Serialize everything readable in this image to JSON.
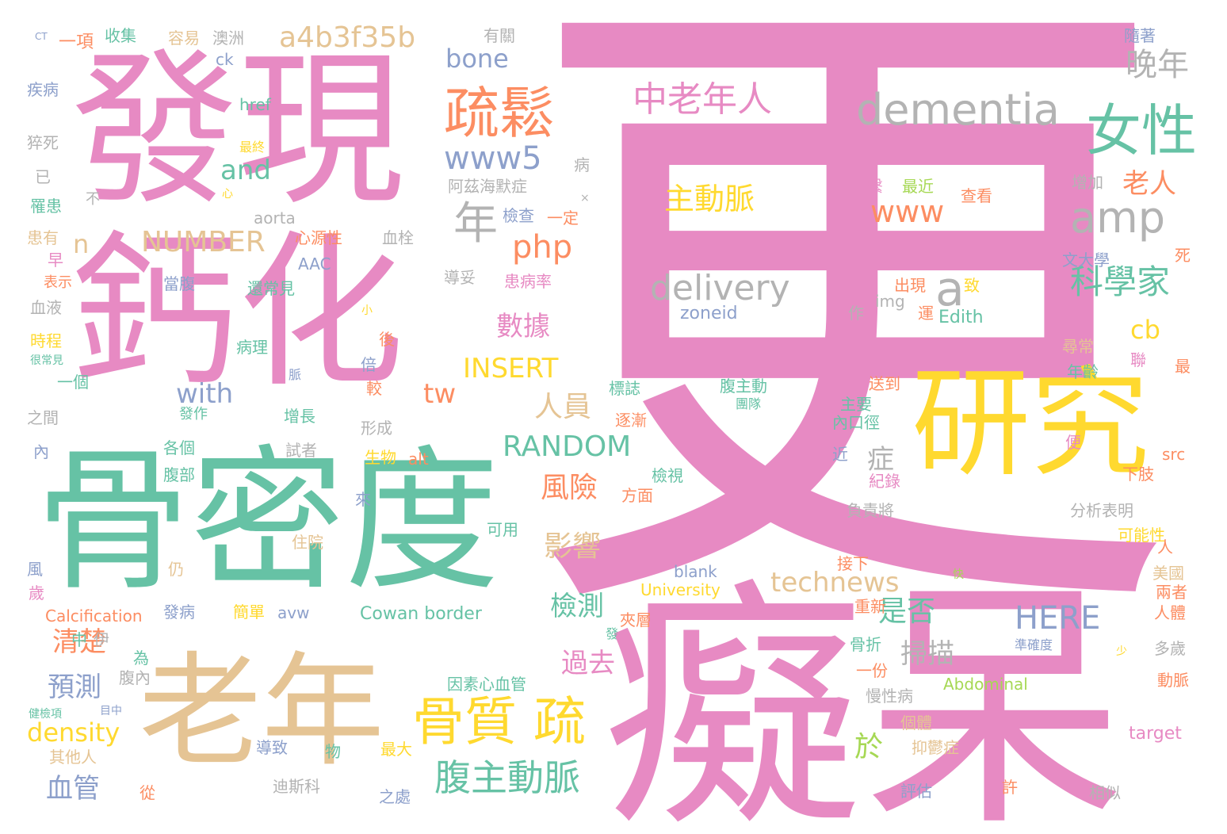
{
  "word_cloud": {
    "palette": {
      "pink": "#e78ac3",
      "green": "#66c2a5",
      "orange": "#fc8d62",
      "blue": "#8da0cb",
      "lime": "#a6d854",
      "yellow": "#ffd92f",
      "tan": "#e5c494",
      "gray": "#b3b3b3"
    },
    "words": [
      {
        "text": "更",
        "color": "pink"
      },
      {
        "text": "癡呆",
        "color": "pink"
      },
      {
        "text": "發現",
        "color": "pink"
      },
      {
        "text": "鈣化",
        "color": "pink"
      },
      {
        "text": "骨密度",
        "color": "green"
      },
      {
        "text": "老年",
        "color": "tan"
      },
      {
        "text": "研究",
        "color": "yellow"
      },
      {
        "text": "疏鬆",
        "color": "orange"
      },
      {
        "text": "女性",
        "color": "green"
      },
      {
        "text": "dementia",
        "color": "gray"
      },
      {
        "text": "amp",
        "color": "gray"
      },
      {
        "text": "骨質 疏",
        "color": "yellow"
      },
      {
        "text": "腹主動脈",
        "color": "green"
      },
      {
        "text": "中老年人",
        "color": "pink"
      },
      {
        "text": "a4b3f35b",
        "color": "tan"
      },
      {
        "text": "年",
        "color": "gray"
      },
      {
        "text": "a",
        "color": "gray"
      },
      {
        "text": "科學家",
        "color": "green"
      },
      {
        "text": "晚年",
        "color": "gray"
      },
      {
        "text": "www5",
        "color": "blue"
      },
      {
        "text": "www",
        "color": "orange"
      },
      {
        "text": "主動脈",
        "color": "yellow"
      },
      {
        "text": "delivery",
        "color": "gray"
      },
      {
        "text": "NUMBER",
        "color": "tan"
      },
      {
        "text": "php",
        "color": "orange"
      },
      {
        "text": "INSERT",
        "color": "yellow"
      },
      {
        "text": "RANDOM",
        "color": "green"
      },
      {
        "text": "technews",
        "color": "tan"
      },
      {
        "text": "HERE",
        "color": "blue"
      },
      {
        "text": "bone",
        "color": "blue"
      },
      {
        "text": "數據",
        "color": "pink"
      },
      {
        "text": "風險",
        "color": "orange"
      },
      {
        "text": "影響",
        "color": "tan"
      },
      {
        "text": "人員",
        "color": "tan"
      },
      {
        "text": "檢測",
        "color": "green"
      },
      {
        "text": "過去",
        "color": "pink"
      },
      {
        "text": "是否",
        "color": "green"
      },
      {
        "text": "掃描",
        "color": "gray"
      },
      {
        "text": "老人",
        "color": "orange"
      },
      {
        "text": "with",
        "color": "blue"
      },
      {
        "text": "and",
        "color": "green"
      },
      {
        "text": "tw",
        "color": "orange"
      },
      {
        "text": "cb",
        "color": "yellow"
      },
      {
        "text": "density",
        "color": "yellow"
      },
      {
        "text": "血管",
        "color": "blue"
      },
      {
        "text": "預測",
        "color": "blue"
      },
      {
        "text": "清楚",
        "color": "orange"
      },
      {
        "text": "於",
        "color": "lime"
      },
      {
        "text": "症",
        "color": "gray"
      },
      {
        "text": "n",
        "color": "tan"
      },
      {
        "text": "zoneid",
        "color": "blue"
      },
      {
        "text": "Edith",
        "color": "green"
      },
      {
        "text": "img",
        "color": "gray"
      },
      {
        "text": "Cowan border",
        "color": "green"
      },
      {
        "text": "Calcification",
        "color": "orange"
      },
      {
        "text": "University",
        "color": "yellow"
      },
      {
        "text": "Abdominal",
        "color": "lime"
      },
      {
        "text": "blank",
        "color": "blue"
      },
      {
        "text": "target",
        "color": "pink"
      },
      {
        "text": "src",
        "color": "orange"
      },
      {
        "text": "alt",
        "color": "orange"
      },
      {
        "text": "avw",
        "color": "blue"
      },
      {
        "text": "aorta",
        "color": "gray"
      },
      {
        "text": "AAC",
        "color": "blue"
      },
      {
        "text": "href",
        "color": "green"
      },
      {
        "text": "ck",
        "color": "blue"
      },
      {
        "text": "CT",
        "color": "blue"
      },
      {
        "text": "一項",
        "color": "orange"
      },
      {
        "text": "收集",
        "color": "green"
      },
      {
        "text": "容易",
        "color": "tan"
      },
      {
        "text": "澳洲",
        "color": "gray"
      },
      {
        "text": "有關",
        "color": "gray"
      },
      {
        "text": "隨著",
        "color": "blue"
      },
      {
        "text": "疾病",
        "color": "blue"
      },
      {
        "text": "猝死",
        "color": "gray"
      },
      {
        "text": "最終",
        "color": "yellow"
      },
      {
        "text": "已",
        "color": "gray"
      },
      {
        "text": "罹患",
        "color": "green"
      },
      {
        "text": "不",
        "color": "gray"
      },
      {
        "text": "心",
        "color": "yellow"
      },
      {
        "text": "患有",
        "color": "tan"
      },
      {
        "text": "心源性",
        "color": "orange"
      },
      {
        "text": "血栓",
        "color": "gray"
      },
      {
        "text": "早",
        "color": "pink"
      },
      {
        "text": "表示",
        "color": "orange"
      },
      {
        "text": "當腹",
        "color": "blue"
      },
      {
        "text": "還常見",
        "color": "green"
      },
      {
        "text": "血液",
        "color": "gray"
      },
      {
        "text": "時程",
        "color": "yellow"
      },
      {
        "text": "很常見",
        "color": "green"
      },
      {
        "text": "病理",
        "color": "green"
      },
      {
        "text": "一個",
        "color": "green"
      },
      {
        "text": "增長",
        "color": "green"
      },
      {
        "text": "之間",
        "color": "gray"
      },
      {
        "text": "發作",
        "color": "green"
      },
      {
        "text": "形成",
        "color": "gray"
      },
      {
        "text": "內",
        "color": "blue"
      },
      {
        "text": "各個",
        "color": "green"
      },
      {
        "text": "試者",
        "color": "gray"
      },
      {
        "text": "腹部",
        "color": "green"
      },
      {
        "text": "生物",
        "color": "yellow"
      },
      {
        "text": "來",
        "color": "blue"
      },
      {
        "text": "風",
        "color": "blue"
      },
      {
        "text": "住院",
        "color": "tan"
      },
      {
        "text": "仍",
        "color": "tan"
      },
      {
        "text": "歲",
        "color": "pink"
      },
      {
        "text": "發病",
        "color": "blue"
      },
      {
        "text": "簡單",
        "color": "yellow"
      },
      {
        "text": "中",
        "color": "green"
      },
      {
        "text": "伊",
        "color": "gray"
      },
      {
        "text": "為",
        "color": "green"
      },
      {
        "text": "腹內",
        "color": "gray"
      },
      {
        "text": "健檢項",
        "color": "green"
      },
      {
        "text": "目中",
        "color": "blue"
      },
      {
        "text": "其他人",
        "color": "tan"
      },
      {
        "text": "從",
        "color": "orange"
      },
      {
        "text": "導致",
        "color": "blue"
      },
      {
        "text": "物",
        "color": "green"
      },
      {
        "text": "迪斯科",
        "color": "gray"
      },
      {
        "text": "之處",
        "color": "blue"
      },
      {
        "text": "最大",
        "color": "yellow"
      },
      {
        "text": "阿茲海默症",
        "color": "gray"
      },
      {
        "text": "檢查",
        "color": "blue"
      },
      {
        "text": "一定",
        "color": "orange"
      },
      {
        "text": "導妥",
        "color": "gray"
      },
      {
        "text": "患病率",
        "color": "pink"
      },
      {
        "text": "病",
        "color": "gray"
      },
      {
        "text": "增加",
        "color": "gray"
      },
      {
        "text": "繫",
        "color": "pink"
      },
      {
        "text": "最近",
        "color": "lime"
      },
      {
        "text": "查看",
        "color": "orange"
      },
      {
        "text": "死",
        "color": "orange"
      },
      {
        "text": "文大學",
        "color": "blue"
      },
      {
        "text": "出現",
        "color": "orange"
      },
      {
        "text": "致",
        "color": "yellow"
      },
      {
        "text": "作",
        "color": "gray"
      },
      {
        "text": "運",
        "color": "orange"
      },
      {
        "text": "尋常",
        "color": "tan"
      },
      {
        "text": "聯",
        "color": "pink"
      },
      {
        "text": "最",
        "color": "orange"
      },
      {
        "text": "年齡",
        "color": "green"
      },
      {
        "text": "送到",
        "color": "orange"
      },
      {
        "text": "主要",
        "color": "green"
      },
      {
        "text": "腹主動",
        "color": "green"
      },
      {
        "text": "團隊",
        "color": "green"
      },
      {
        "text": "標誌",
        "color": "green"
      },
      {
        "text": "逐漸",
        "color": "orange"
      },
      {
        "text": "內口徑",
        "color": "green"
      },
      {
        "text": "近",
        "color": "blue"
      },
      {
        "text": "便",
        "color": "pink"
      },
      {
        "text": "下肢",
        "color": "orange"
      },
      {
        "text": "紀錄",
        "color": "pink"
      },
      {
        "text": "檢視",
        "color": "green"
      },
      {
        "text": "方面",
        "color": "orange"
      },
      {
        "text": "負責將",
        "color": "gray"
      },
      {
        "text": "分析表明",
        "color": "gray"
      },
      {
        "text": "可用",
        "color": "green"
      },
      {
        "text": "可能性",
        "color": "yellow"
      },
      {
        "text": "人",
        "color": "orange"
      },
      {
        "text": "接下",
        "color": "orange"
      },
      {
        "text": "美國",
        "color": "tan"
      },
      {
        "text": "兩者",
        "color": "orange"
      },
      {
        "text": "人體",
        "color": "orange"
      },
      {
        "text": "夾層",
        "color": "orange"
      },
      {
        "text": "重新",
        "color": "orange"
      },
      {
        "text": "骨折",
        "color": "green"
      },
      {
        "text": "一份",
        "color": "orange"
      },
      {
        "text": "準確度",
        "color": "blue"
      },
      {
        "text": "多歲",
        "color": "gray"
      },
      {
        "text": "因素心血管",
        "color": "green"
      },
      {
        "text": "慢性病",
        "color": "gray"
      },
      {
        "text": "個體",
        "color": "tan"
      },
      {
        "text": "動脈",
        "color": "orange"
      },
      {
        "text": "抑鬱症",
        "color": "tan"
      },
      {
        "text": "評估",
        "color": "blue"
      },
      {
        "text": "許",
        "color": "orange"
      },
      {
        "text": "相似",
        "color": "gray"
      },
      {
        "text": "後",
        "color": "orange"
      },
      {
        "text": "倍",
        "color": "blue"
      },
      {
        "text": "較",
        "color": "orange"
      },
      {
        "text": "小",
        "color": "yellow"
      },
      {
        "text": "脈",
        "color": "blue"
      },
      {
        "text": "名",
        "color": "pink"
      },
      {
        "text": "快",
        "color": "lime"
      },
      {
        "text": "少",
        "color": "yellow"
      },
      {
        "text": "發",
        "color": "green"
      },
      {
        "text": "×",
        "color": "gray"
      }
    ]
  }
}
